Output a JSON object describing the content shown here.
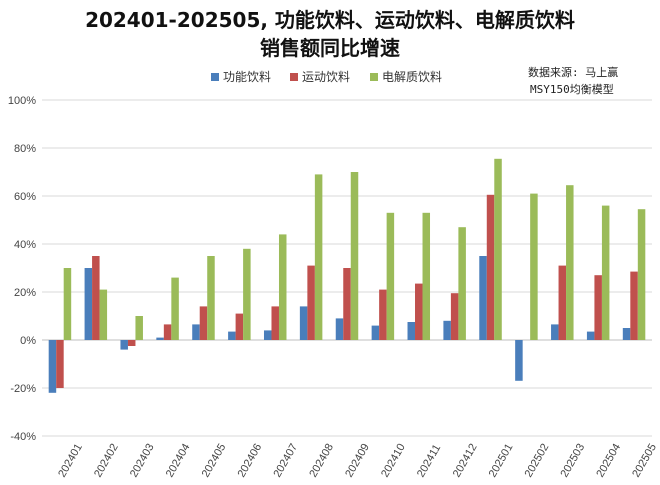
{
  "chart_data": {
    "type": "bar",
    "title_line1": "202401-202505, 功能饮料、运动饮料、电解质饮料",
    "title_line2": "销售额同比增速",
    "source_line1": "数据来源: 马上赢",
    "source_line2": "MSY150均衡模型",
    "categories": [
      "202401",
      "202402",
      "202403",
      "202404",
      "202405",
      "202406",
      "202407",
      "202408",
      "202409",
      "202410",
      "202411",
      "202412",
      "202501",
      "202502",
      "202503",
      "202504",
      "202505"
    ],
    "series": [
      {
        "name": "功能饮料",
        "color": "#4a7ebb",
        "values": [
          -22,
          30,
          -4,
          1,
          6.5,
          3.5,
          4,
          14,
          9,
          6,
          7.5,
          8,
          35,
          -17,
          6.5,
          3.5,
          5
        ]
      },
      {
        "name": "运动饮料",
        "color": "#c0504d",
        "values": [
          -20,
          35,
          -2.5,
          6.5,
          14,
          11,
          14,
          31,
          30,
          21,
          23.5,
          19.5,
          60.5,
          0,
          31,
          27,
          28.5
        ]
      },
      {
        "name": "电解质饮料",
        "color": "#9bbb59",
        "values": [
          30,
          21,
          10,
          26,
          35,
          38,
          44,
          69,
          70,
          53,
          53,
          47,
          75.5,
          61,
          64.5,
          56,
          54.5
        ]
      }
    ],
    "ylim": [
      -40,
      100
    ],
    "yticks": [
      "-40%",
      "-20%",
      "0%",
      "20%",
      "40%",
      "60%",
      "80%",
      "100%"
    ],
    "ytick_values": [
      -40,
      -20,
      0,
      20,
      40,
      60,
      80,
      100
    ],
    "grid": true,
    "legend": "top-center"
  }
}
